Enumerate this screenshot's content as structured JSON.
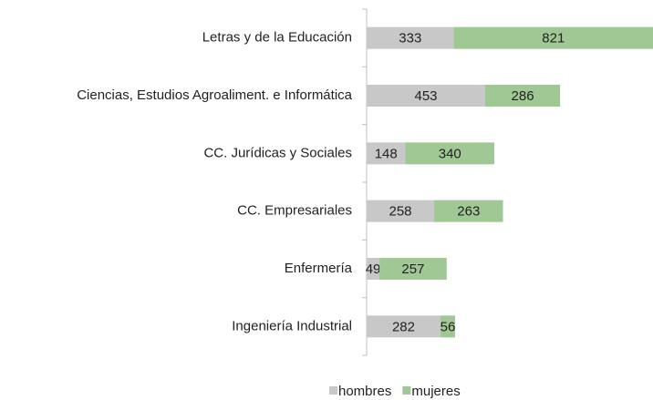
{
  "chart_data": {
    "type": "stacked-bar-horizontal",
    "categories": [
      "Letras y de la Educación",
      "Ciencias, Estudios Agroaliment. e Informática",
      "CC. Jurídicas y Sociales",
      "CC. Empresariales",
      "Enfermería",
      "Ingeniería Industrial"
    ],
    "series": [
      {
        "name": "hombres",
        "color": "#c8c8c8",
        "values": [
          333,
          453,
          148,
          258,
          49,
          282
        ]
      },
      {
        "name": "mujeres",
        "color": "#a0c894",
        "values": [
          821,
          286,
          340,
          263,
          257,
          56
        ]
      }
    ],
    "legend": "bottom"
  }
}
